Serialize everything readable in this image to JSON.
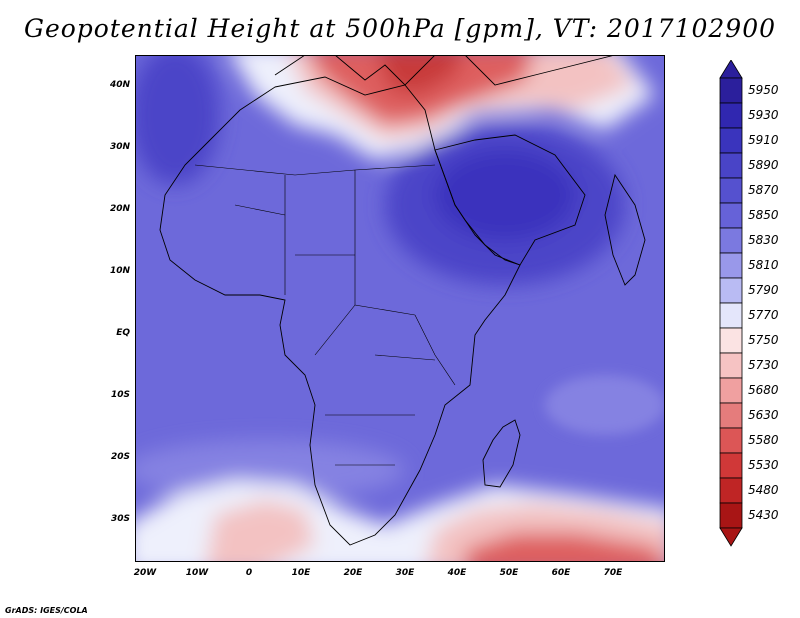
{
  "title": "Geopotential Height at 500hPa [gpm], VT: 2017102900",
  "footer": "GrADS: IGES/COLA",
  "latitude_labels": [
    "40N",
    "30N",
    "20N",
    "10N",
    "EQ",
    "10S",
    "20S",
    "30S"
  ],
  "longitude_labels": [
    "20W",
    "10W",
    "0",
    "10E",
    "20E",
    "30E",
    "40E",
    "50E",
    "60E",
    "70E"
  ],
  "colorbar": {
    "levels": [
      "5950",
      "5930",
      "5910",
      "5890",
      "5870",
      "5850",
      "5830",
      "5810",
      "5790",
      "5770",
      "5750",
      "5730",
      "5680",
      "5630",
      "5580",
      "5530",
      "5480",
      "5430"
    ],
    "colors": [
      "#2b1f9c",
      "#3027b0",
      "#3a34bd",
      "#4944c7",
      "#5551cf",
      "#6662d8",
      "#7b79e0",
      "#9998ea",
      "#b9bbf3",
      "#e4e6fb",
      "#fbe3e3",
      "#f6c3c3",
      "#f0a0a0",
      "#e57c7c",
      "#dc5656",
      "#d03838",
      "#bf2525",
      "#a81515"
    ]
  },
  "field_colors": {
    "ocean_base": "#6d69da",
    "land_base": "#6560d6",
    "high_core": "#3a32bd",
    "high_mid": "#4b45c8",
    "ridge_light": "#8582e2",
    "trough_white": "#eef0fc",
    "trough_pink": "#f3c2c2",
    "trough_red": "#de5f5f",
    "trough_deep": "#c83a3a"
  }
}
